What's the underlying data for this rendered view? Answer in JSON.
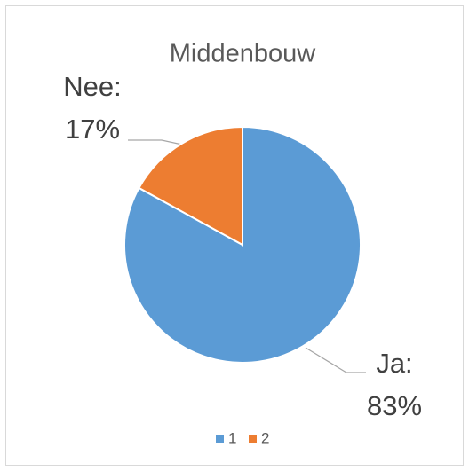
{
  "chart_data": {
    "type": "pie",
    "title": "Middenbouw",
    "categories": [
      "Ja:",
      "Nee:"
    ],
    "values": [
      83,
      17
    ],
    "value_labels": [
      "83%",
      "17%"
    ],
    "colors": [
      "#5b9bd5",
      "#ed7d31"
    ],
    "legend": [
      "1",
      "2"
    ],
    "legend_position": "bottom"
  }
}
